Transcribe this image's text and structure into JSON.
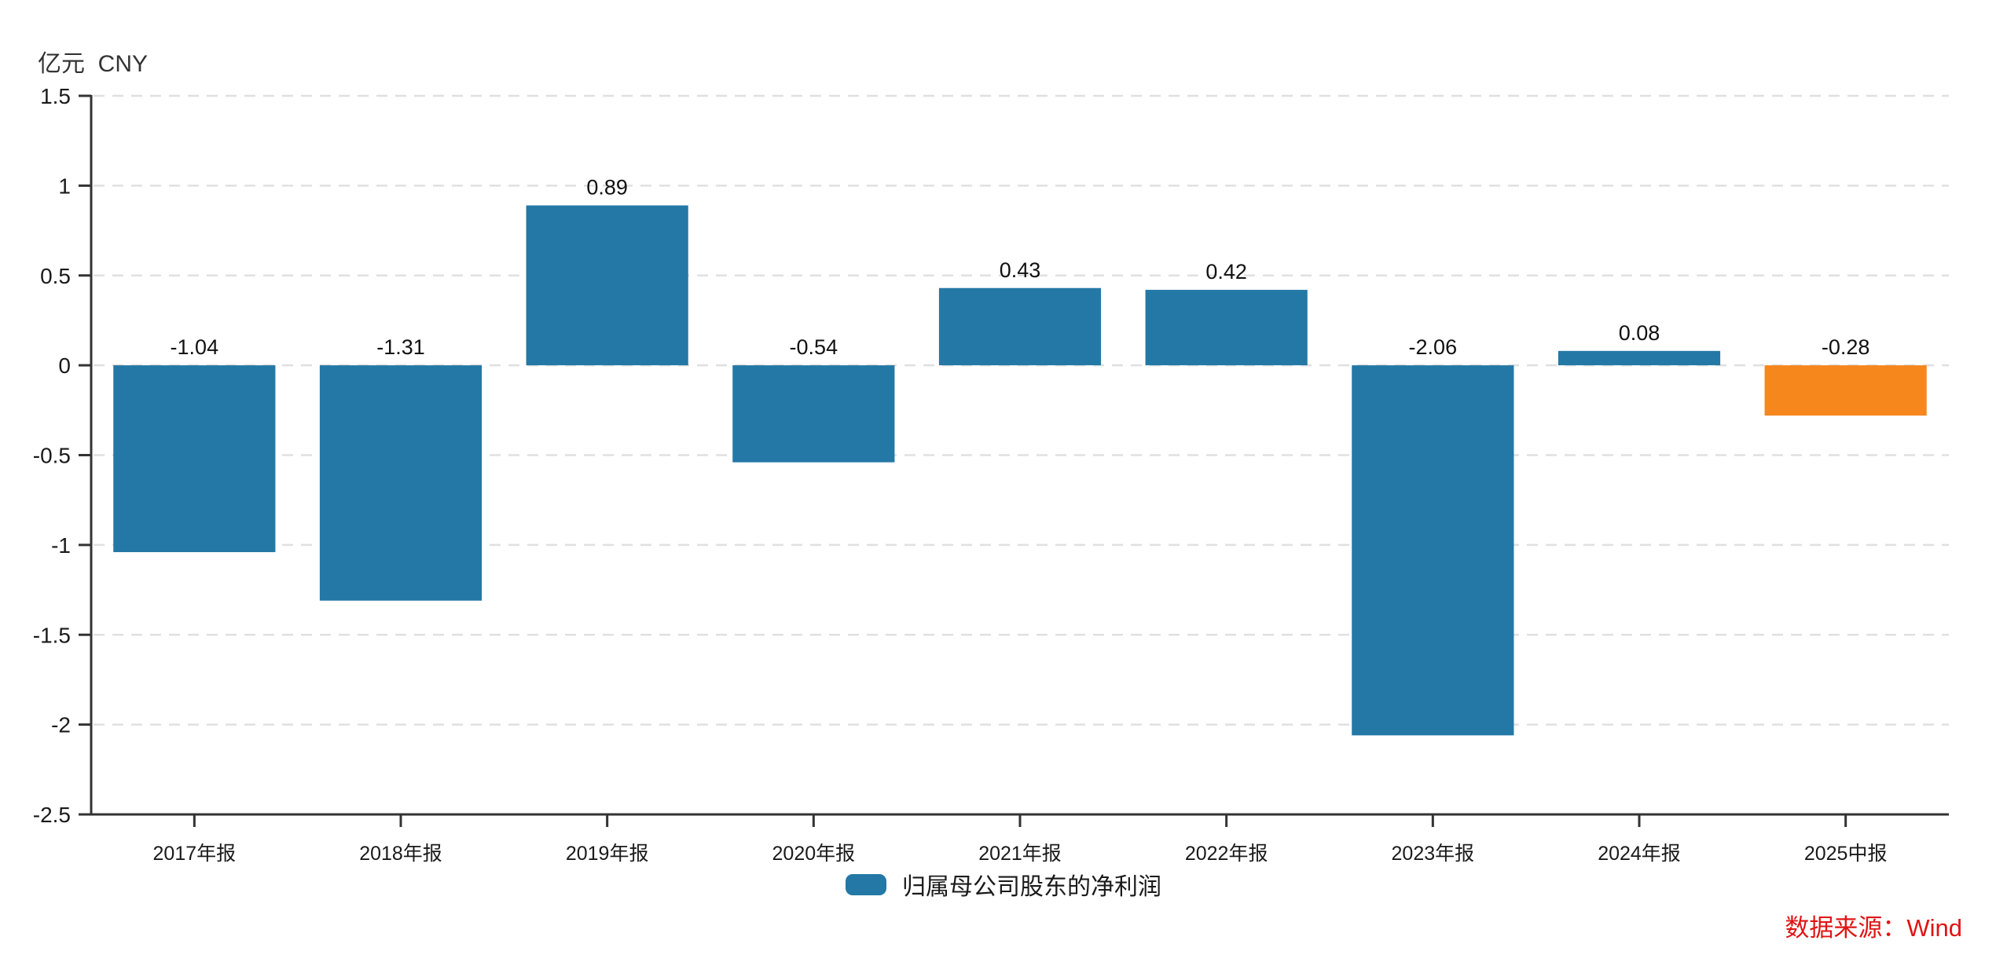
{
  "chart_data": {
    "type": "bar",
    "title": "",
    "unit_label": "亿元  CNY",
    "categories": [
      "2017年报",
      "2018年报",
      "2019年报",
      "2020年报",
      "2021年报",
      "2022年报",
      "2023年报",
      "2024年报",
      "2025中报"
    ],
    "series": [
      {
        "name": "归属母公司股东的净利润",
        "values": [
          -1.04,
          -1.31,
          0.89,
          -0.54,
          0.43,
          0.42,
          -2.06,
          0.08,
          -0.28
        ]
      }
    ],
    "value_labels": [
      "-1.04",
      "-1.31",
      "0.89",
      "-0.54",
      "0.43",
      "0.42",
      "-2.06",
      "0.08",
      "-0.28"
    ],
    "bar_colors": [
      "#2478a6",
      "#2478a6",
      "#2478a6",
      "#2478a6",
      "#2478a6",
      "#2478a6",
      "#2478a6",
      "#2478a6",
      "#f6871d"
    ],
    "ylim": [
      -2.5,
      1.5
    ],
    "ytick_step": 0.5,
    "ytick_labels": [
      "-2.5",
      "-2",
      "-1.5",
      "-1",
      "-0.5",
      "0",
      "0.5",
      "1",
      "1.5"
    ],
    "grid": "horizontal-dashed",
    "legend_position": "bottom-center",
    "xlabel": "",
    "ylabel": "亿元 CNY"
  },
  "colors": {
    "bar_default": "#2478a6",
    "bar_highlight": "#f6871d",
    "axis": "#333333",
    "grid_line": "#e0e0e0",
    "tick_label": "#1a1a1a",
    "value_label": "#111111",
    "source_text": "#e01414"
  },
  "footer": {
    "source_text": "数据来源：Wind"
  }
}
